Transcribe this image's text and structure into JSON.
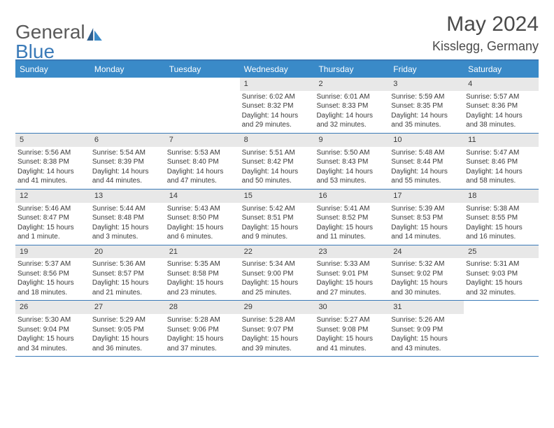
{
  "logo": {
    "text_a": "General",
    "text_b": "Blue"
  },
  "title": "May 2024",
  "location": "Kisslegg, Germany",
  "colors": {
    "header_bar": "#3a8ac8",
    "accent_line": "#3a7ab8",
    "daynum_bg": "#e8e8e8",
    "page_bg": "#ffffff",
    "text": "#3a3a3a",
    "logo_gray": "#5a5a5a",
    "logo_blue": "#3a7ab8"
  },
  "weekdays": [
    "Sunday",
    "Monday",
    "Tuesday",
    "Wednesday",
    "Thursday",
    "Friday",
    "Saturday"
  ],
  "weeks": [
    [
      {
        "n": "",
        "lines": []
      },
      {
        "n": "",
        "lines": []
      },
      {
        "n": "",
        "lines": []
      },
      {
        "n": "1",
        "lines": [
          "Sunrise: 6:02 AM",
          "Sunset: 8:32 PM",
          "Daylight: 14 hours and 29 minutes."
        ]
      },
      {
        "n": "2",
        "lines": [
          "Sunrise: 6:01 AM",
          "Sunset: 8:33 PM",
          "Daylight: 14 hours and 32 minutes."
        ]
      },
      {
        "n": "3",
        "lines": [
          "Sunrise: 5:59 AM",
          "Sunset: 8:35 PM",
          "Daylight: 14 hours and 35 minutes."
        ]
      },
      {
        "n": "4",
        "lines": [
          "Sunrise: 5:57 AM",
          "Sunset: 8:36 PM",
          "Daylight: 14 hours and 38 minutes."
        ]
      }
    ],
    [
      {
        "n": "5",
        "lines": [
          "Sunrise: 5:56 AM",
          "Sunset: 8:38 PM",
          "Daylight: 14 hours and 41 minutes."
        ]
      },
      {
        "n": "6",
        "lines": [
          "Sunrise: 5:54 AM",
          "Sunset: 8:39 PM",
          "Daylight: 14 hours and 44 minutes."
        ]
      },
      {
        "n": "7",
        "lines": [
          "Sunrise: 5:53 AM",
          "Sunset: 8:40 PM",
          "Daylight: 14 hours and 47 minutes."
        ]
      },
      {
        "n": "8",
        "lines": [
          "Sunrise: 5:51 AM",
          "Sunset: 8:42 PM",
          "Daylight: 14 hours and 50 minutes."
        ]
      },
      {
        "n": "9",
        "lines": [
          "Sunrise: 5:50 AM",
          "Sunset: 8:43 PM",
          "Daylight: 14 hours and 53 minutes."
        ]
      },
      {
        "n": "10",
        "lines": [
          "Sunrise: 5:48 AM",
          "Sunset: 8:44 PM",
          "Daylight: 14 hours and 55 minutes."
        ]
      },
      {
        "n": "11",
        "lines": [
          "Sunrise: 5:47 AM",
          "Sunset: 8:46 PM",
          "Daylight: 14 hours and 58 minutes."
        ]
      }
    ],
    [
      {
        "n": "12",
        "lines": [
          "Sunrise: 5:46 AM",
          "Sunset: 8:47 PM",
          "Daylight: 15 hours and 1 minute."
        ]
      },
      {
        "n": "13",
        "lines": [
          "Sunrise: 5:44 AM",
          "Sunset: 8:48 PM",
          "Daylight: 15 hours and 3 minutes."
        ]
      },
      {
        "n": "14",
        "lines": [
          "Sunrise: 5:43 AM",
          "Sunset: 8:50 PM",
          "Daylight: 15 hours and 6 minutes."
        ]
      },
      {
        "n": "15",
        "lines": [
          "Sunrise: 5:42 AM",
          "Sunset: 8:51 PM",
          "Daylight: 15 hours and 9 minutes."
        ]
      },
      {
        "n": "16",
        "lines": [
          "Sunrise: 5:41 AM",
          "Sunset: 8:52 PM",
          "Daylight: 15 hours and 11 minutes."
        ]
      },
      {
        "n": "17",
        "lines": [
          "Sunrise: 5:39 AM",
          "Sunset: 8:53 PM",
          "Daylight: 15 hours and 14 minutes."
        ]
      },
      {
        "n": "18",
        "lines": [
          "Sunrise: 5:38 AM",
          "Sunset: 8:55 PM",
          "Daylight: 15 hours and 16 minutes."
        ]
      }
    ],
    [
      {
        "n": "19",
        "lines": [
          "Sunrise: 5:37 AM",
          "Sunset: 8:56 PM",
          "Daylight: 15 hours and 18 minutes."
        ]
      },
      {
        "n": "20",
        "lines": [
          "Sunrise: 5:36 AM",
          "Sunset: 8:57 PM",
          "Daylight: 15 hours and 21 minutes."
        ]
      },
      {
        "n": "21",
        "lines": [
          "Sunrise: 5:35 AM",
          "Sunset: 8:58 PM",
          "Daylight: 15 hours and 23 minutes."
        ]
      },
      {
        "n": "22",
        "lines": [
          "Sunrise: 5:34 AM",
          "Sunset: 9:00 PM",
          "Daylight: 15 hours and 25 minutes."
        ]
      },
      {
        "n": "23",
        "lines": [
          "Sunrise: 5:33 AM",
          "Sunset: 9:01 PM",
          "Daylight: 15 hours and 27 minutes."
        ]
      },
      {
        "n": "24",
        "lines": [
          "Sunrise: 5:32 AM",
          "Sunset: 9:02 PM",
          "Daylight: 15 hours and 30 minutes."
        ]
      },
      {
        "n": "25",
        "lines": [
          "Sunrise: 5:31 AM",
          "Sunset: 9:03 PM",
          "Daylight: 15 hours and 32 minutes."
        ]
      }
    ],
    [
      {
        "n": "26",
        "lines": [
          "Sunrise: 5:30 AM",
          "Sunset: 9:04 PM",
          "Daylight: 15 hours and 34 minutes."
        ]
      },
      {
        "n": "27",
        "lines": [
          "Sunrise: 5:29 AM",
          "Sunset: 9:05 PM",
          "Daylight: 15 hours and 36 minutes."
        ]
      },
      {
        "n": "28",
        "lines": [
          "Sunrise: 5:28 AM",
          "Sunset: 9:06 PM",
          "Daylight: 15 hours and 37 minutes."
        ]
      },
      {
        "n": "29",
        "lines": [
          "Sunrise: 5:28 AM",
          "Sunset: 9:07 PM",
          "Daylight: 15 hours and 39 minutes."
        ]
      },
      {
        "n": "30",
        "lines": [
          "Sunrise: 5:27 AM",
          "Sunset: 9:08 PM",
          "Daylight: 15 hours and 41 minutes."
        ]
      },
      {
        "n": "31",
        "lines": [
          "Sunrise: 5:26 AM",
          "Sunset: 9:09 PM",
          "Daylight: 15 hours and 43 minutes."
        ]
      },
      {
        "n": "",
        "lines": []
      }
    ]
  ]
}
